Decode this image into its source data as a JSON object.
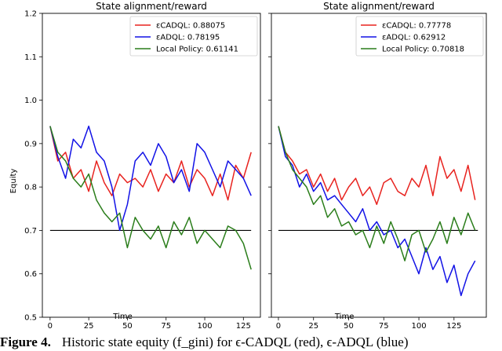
{
  "caption": {
    "label": "Figure 4.",
    "text": "Historic state equity (f_gini) for ϵ-CADQL (red), ϵ-ADQL (blue)"
  },
  "colors": {
    "cadql": "#e8231f",
    "adql": "#1212e6",
    "local": "#2a7d1a",
    "reference": "#000000"
  },
  "chart_data": [
    {
      "type": "line",
      "title": "State alignment/reward",
      "xlabel": "Time",
      "ylabel": "Equity",
      "xlim": [
        -5,
        136
      ],
      "ylim": [
        0.5,
        1.2
      ],
      "xticks": [
        0,
        25,
        50,
        75,
        100,
        125
      ],
      "yticks": [
        0.5,
        0.6,
        0.7,
        0.8,
        0.9,
        1.0,
        1.1,
        1.2
      ],
      "grid": false,
      "legend_position": "top-right",
      "reference_line": 0.7,
      "series": [
        {
          "name": "εCADQL: 0.88075",
          "color": "#e8231f",
          "x": [
            0,
            5,
            10,
            15,
            20,
            25,
            30,
            35,
            40,
            45,
            50,
            55,
            60,
            65,
            70,
            75,
            80,
            85,
            90,
            95,
            100,
            105,
            110,
            115,
            120,
            125,
            130
          ],
          "y": [
            0.94,
            0.86,
            0.88,
            0.82,
            0.84,
            0.79,
            0.86,
            0.81,
            0.78,
            0.83,
            0.81,
            0.82,
            0.8,
            0.84,
            0.79,
            0.83,
            0.81,
            0.86,
            0.8,
            0.84,
            0.82,
            0.78,
            0.83,
            0.77,
            0.85,
            0.82,
            0.88
          ]
        },
        {
          "name": "εADQL: 0.78195",
          "color": "#1212e6",
          "x": [
            0,
            5,
            10,
            15,
            20,
            25,
            30,
            35,
            40,
            45,
            50,
            55,
            60,
            65,
            70,
            75,
            80,
            85,
            90,
            95,
            100,
            105,
            110,
            115,
            120,
            125,
            130
          ],
          "y": [
            0.94,
            0.87,
            0.82,
            0.91,
            0.89,
            0.94,
            0.88,
            0.86,
            0.8,
            0.7,
            0.76,
            0.86,
            0.88,
            0.85,
            0.9,
            0.87,
            0.81,
            0.84,
            0.79,
            0.9,
            0.88,
            0.84,
            0.8,
            0.86,
            0.84,
            0.82,
            0.78
          ]
        },
        {
          "name": "Local Policy: 0.61141",
          "color": "#2a7d1a",
          "x": [
            0,
            5,
            10,
            15,
            20,
            25,
            30,
            35,
            40,
            45,
            50,
            55,
            60,
            65,
            70,
            75,
            80,
            85,
            90,
            95,
            100,
            105,
            110,
            115,
            120,
            125,
            130
          ],
          "y": [
            0.94,
            0.88,
            0.86,
            0.82,
            0.8,
            0.83,
            0.77,
            0.74,
            0.72,
            0.74,
            0.66,
            0.73,
            0.7,
            0.68,
            0.71,
            0.66,
            0.72,
            0.69,
            0.73,
            0.67,
            0.7,
            0.68,
            0.66,
            0.71,
            0.7,
            0.67,
            0.61
          ]
        }
      ]
    },
    {
      "type": "line",
      "title": "State alignment/reward",
      "xlabel": "Time",
      "ylabel": "",
      "xlim": [
        -5,
        148
      ],
      "ylim": [
        0.5,
        1.2
      ],
      "xticks": [
        0,
        25,
        50,
        75,
        100,
        125
      ],
      "grid": false,
      "legend_position": "top-right",
      "reference_line": 0.7,
      "series": [
        {
          "name": "εCADQL: 0.77778",
          "color": "#e8231f",
          "x": [
            0,
            5,
            10,
            15,
            20,
            25,
            30,
            35,
            40,
            45,
            50,
            55,
            60,
            65,
            70,
            75,
            80,
            85,
            90,
            95,
            100,
            105,
            110,
            115,
            120,
            125,
            130,
            135,
            140
          ],
          "y": [
            0.94,
            0.88,
            0.86,
            0.83,
            0.84,
            0.8,
            0.83,
            0.79,
            0.82,
            0.77,
            0.8,
            0.82,
            0.78,
            0.8,
            0.76,
            0.81,
            0.82,
            0.79,
            0.78,
            0.82,
            0.8,
            0.85,
            0.78,
            0.87,
            0.82,
            0.84,
            0.79,
            0.85,
            0.77
          ]
        },
        {
          "name": "εADQL: 0.62912",
          "color": "#1212e6",
          "x": [
            0,
            5,
            10,
            15,
            20,
            25,
            30,
            35,
            40,
            45,
            50,
            55,
            60,
            65,
            70,
            75,
            80,
            85,
            90,
            95,
            100,
            105,
            110,
            115,
            120,
            125,
            130,
            135,
            140
          ],
          "y": [
            0.94,
            0.87,
            0.85,
            0.8,
            0.83,
            0.79,
            0.81,
            0.77,
            0.78,
            0.76,
            0.74,
            0.72,
            0.75,
            0.7,
            0.72,
            0.69,
            0.7,
            0.66,
            0.68,
            0.64,
            0.6,
            0.66,
            0.61,
            0.64,
            0.58,
            0.62,
            0.55,
            0.6,
            0.63
          ]
        },
        {
          "name": "Local Policy: 0.70818",
          "color": "#2a7d1a",
          "x": [
            0,
            5,
            10,
            15,
            20,
            25,
            30,
            35,
            40,
            45,
            50,
            55,
            60,
            65,
            70,
            75,
            80,
            85,
            90,
            95,
            100,
            105,
            110,
            115,
            120,
            125,
            130,
            135,
            140
          ],
          "y": [
            0.94,
            0.88,
            0.84,
            0.82,
            0.8,
            0.76,
            0.78,
            0.73,
            0.75,
            0.71,
            0.72,
            0.69,
            0.7,
            0.66,
            0.71,
            0.67,
            0.72,
            0.68,
            0.63,
            0.69,
            0.7,
            0.65,
            0.68,
            0.72,
            0.67,
            0.73,
            0.69,
            0.74,
            0.7
          ]
        }
      ]
    }
  ]
}
